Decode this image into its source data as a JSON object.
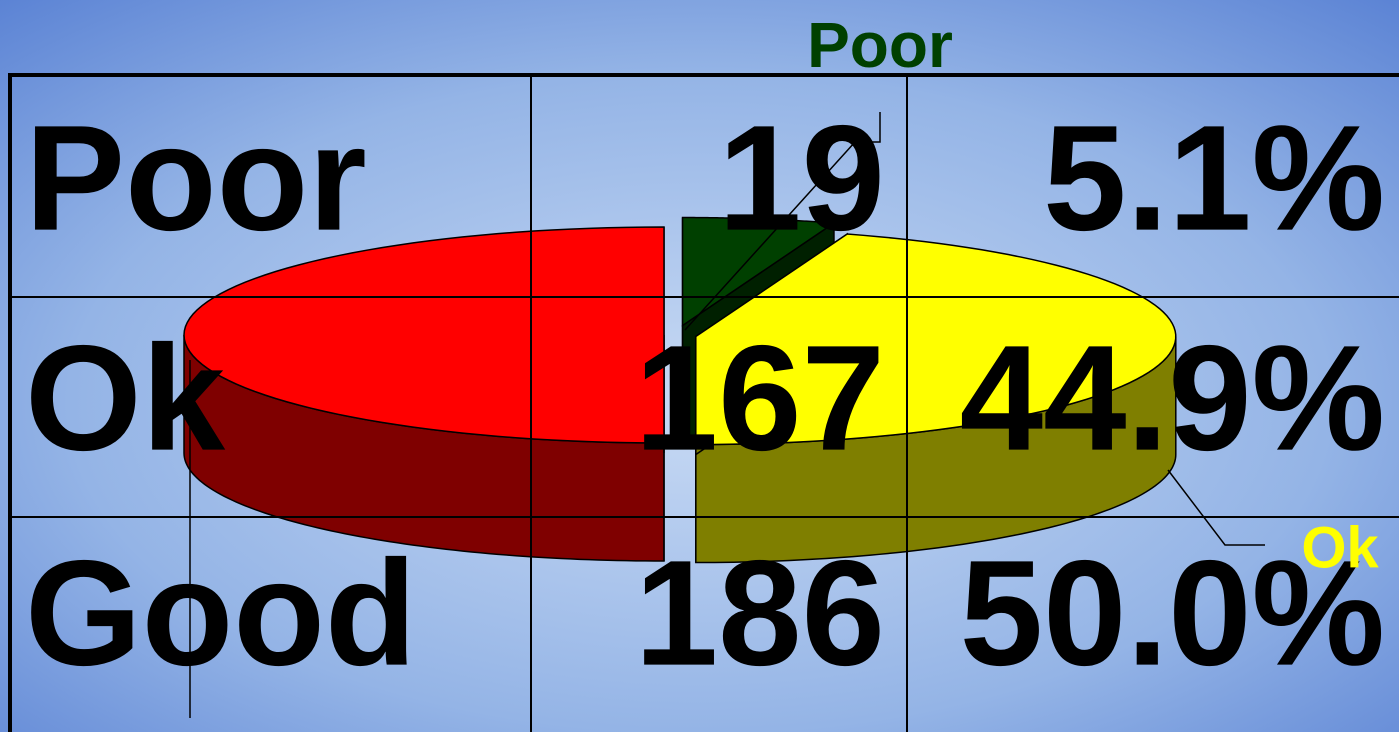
{
  "chart_data": {
    "type": "pie",
    "categories": [
      "Poor",
      "Ok",
      null
    ],
    "values": [
      19,
      167,
      186
    ],
    "colors": [
      "#004000",
      "#ffff00",
      "#ff0000"
    ]
  },
  "table": {
    "rows": [
      [
        "Poor",
        "19",
        "5.1%"
      ],
      [
        "Ok",
        "167",
        "44.9%"
      ],
      [
        "Good",
        "186",
        "50.0%"
      ]
    ]
  }
}
